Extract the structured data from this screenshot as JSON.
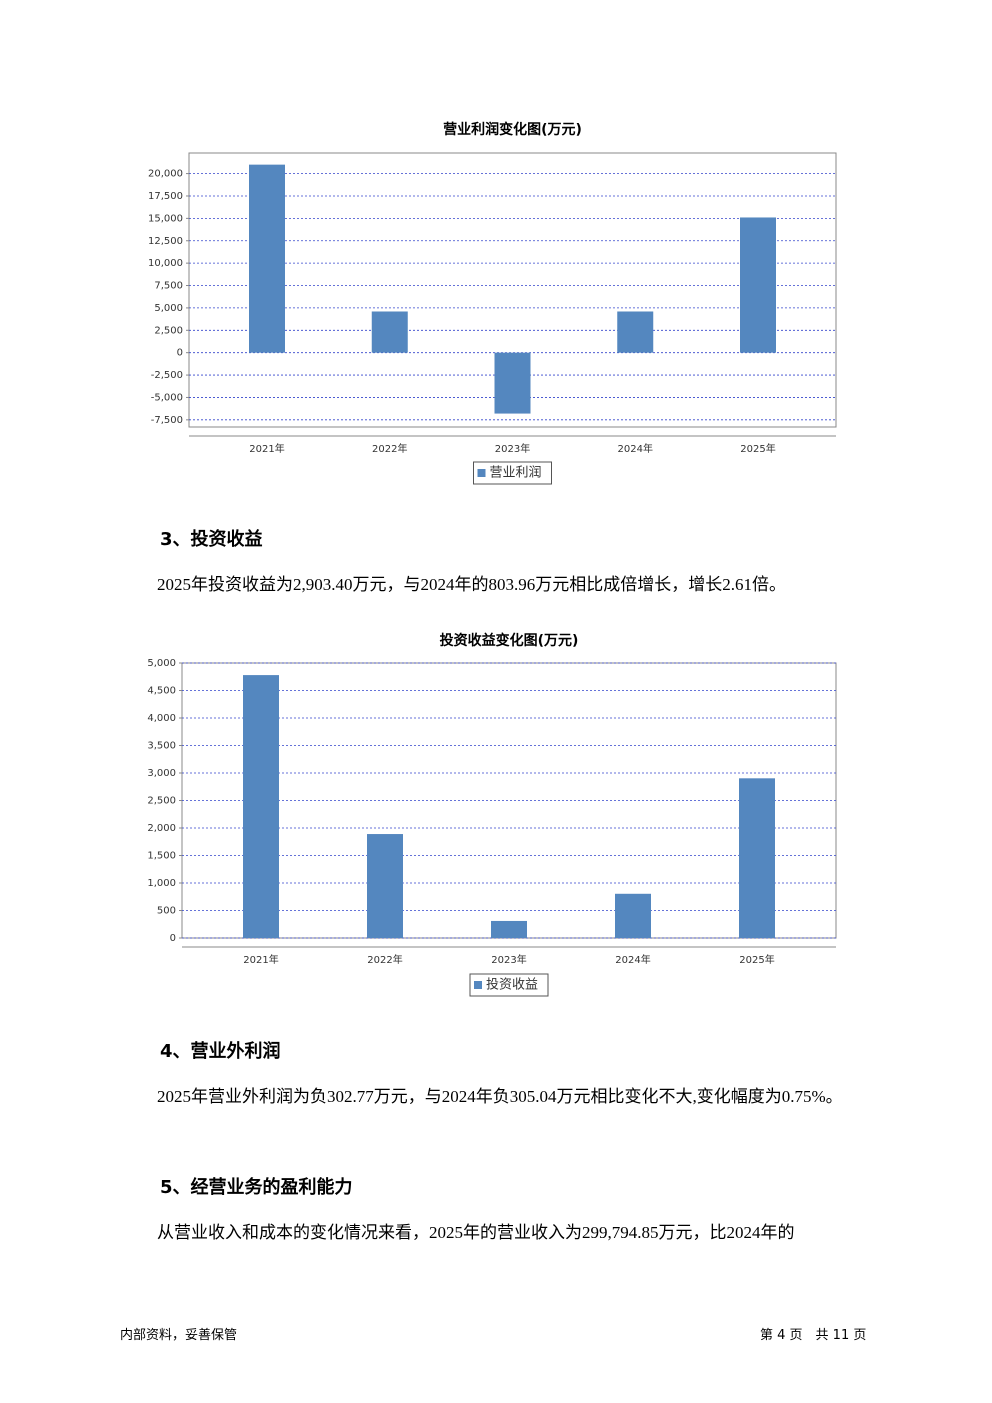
{
  "chart_data": [
    {
      "type": "bar",
      "title": "营业利润变化图(万元)",
      "categories": [
        "2021年",
        "2022年",
        "2023年",
        "2024年",
        "2025年"
      ],
      "series": [
        {
          "name": "营业利润",
          "color": "#5487bf",
          "values": [
            21000,
            4600,
            -6800,
            4600,
            15100
          ]
        }
      ],
      "ylim": [
        -8300,
        22300
      ],
      "yticks": [
        {
          "value": -7500,
          "label": "-7,500"
        },
        {
          "value": -5000,
          "label": "-5,000"
        },
        {
          "value": -2500,
          "label": "-2,500"
        },
        0,
        {
          "value": 2500,
          "label": "2,500"
        },
        {
          "value": 5000,
          "label": "5,000"
        },
        {
          "value": 7500,
          "label": "7,500"
        },
        {
          "value": 10000,
          "label": "10,000"
        },
        {
          "value": 12500,
          "label": "12,500"
        },
        {
          "value": 15000,
          "label": "15,000"
        },
        {
          "value": 17500,
          "label": "17,500"
        },
        {
          "value": 20000,
          "label": "20,000"
        }
      ],
      "grid": true
    },
    {
      "type": "bar",
      "title": "投资收益变化图(万元)",
      "categories": [
        "2021年",
        "2022年",
        "2023年",
        "2024年",
        "2025年"
      ],
      "series": [
        {
          "name": "投资收益",
          "color": "#5487bf",
          "values": [
            4780,
            1890,
            310,
            803.96,
            2903.4
          ]
        }
      ],
      "ylim": [
        0,
        5000
      ],
      "yticks": [
        0,
        500,
        {
          "value": 1000,
          "label": "1,000"
        },
        {
          "value": 1500,
          "label": "1,500"
        },
        {
          "value": 2000,
          "label": "2,000"
        },
        {
          "value": 2500,
          "label": "2,500"
        },
        {
          "value": 3000,
          "label": "3,000"
        },
        {
          "value": 3500,
          "label": "3,500"
        },
        {
          "value": 4000,
          "label": "4,000"
        },
        {
          "value": 4500,
          "label": "4,500"
        },
        {
          "value": 5000,
          "label": "5,000"
        }
      ],
      "grid": true
    }
  ],
  "document": {
    "sections": [
      {
        "heading": "3、投资收益",
        "paragraph": "2025年投资收益为2,903.40万元，与2024年的803.96万元相比成倍增长，增长2.61倍。"
      },
      {
        "heading": "4、营业外利润",
        "paragraph": "2025年营业外利润为负302.77万元，与2024年负305.04万元相比变化不大,变化幅度为0.75%。"
      },
      {
        "heading": "5、经营业务的盈利能力",
        "paragraph": "从营业收入和成本的变化情况来看，2025年的营业收入为299,794.85万元，比2024年的"
      }
    ],
    "footer": {
      "left": "内部资料，妥善保管",
      "right": "第 4 页　共 11 页"
    }
  }
}
